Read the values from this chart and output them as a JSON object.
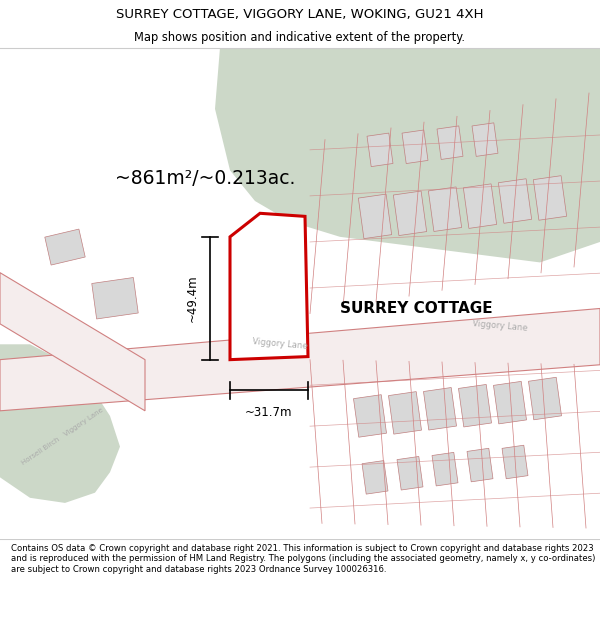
{
  "title_line1": "SURREY COTTAGE, VIGGORY LANE, WOKING, GU21 4XH",
  "title_line2": "Map shows position and indicative extent of the property.",
  "footer_text": "Contains OS data © Crown copyright and database right 2021. This information is subject to Crown copyright and database rights 2023 and is reproduced with the permission of HM Land Registry. The polygons (including the associated geometry, namely x, y co-ordinates) are subject to Crown copyright and database rights 2023 Ordnance Survey 100026316.",
  "area_label": "~861m²/~0.213ac.",
  "width_label": "~31.7m",
  "height_label": "~49.4m",
  "property_label": "SURREY COTTAGE",
  "road_label_mid": "Viggory Lane",
  "road_label_right": "Viggory Lane",
  "road_label_left": "Horsell Birch   Viggory Lane",
  "building_fill": "#d8d8d8",
  "building_edge": "#c08080",
  "green_fill": "#ccd8c8",
  "property_fill": "#ffffff",
  "property_edge": "#cc0000",
  "property_edge_width": 2.2,
  "road_fill": "#f5eded",
  "road_edge": "#d08080",
  "dim_color": "#000000",
  "text_color": "#000000",
  "road_text_color": "#aaaaaa",
  "map_bg": "#f8f8f8",
  "header_bg": "#ffffff",
  "footer_bg": "#ffffff",
  "border_color": "#cccccc"
}
